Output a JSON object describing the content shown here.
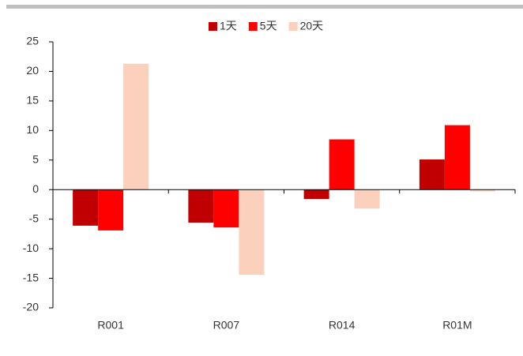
{
  "chart_data": {
    "type": "bar",
    "categories": [
      "R001",
      "R007",
      "R014",
      "R01M"
    ],
    "series": [
      {
        "name": "1天",
        "color": "#c00000",
        "values": [
          -6.1,
          -5.6,
          -1.6,
          5.1
        ]
      },
      {
        "name": "5天",
        "color": "#ff0000",
        "values": [
          -6.9,
          -6.4,
          8.5,
          10.9
        ]
      },
      {
        "name": "20天",
        "color": "#fbd0bd",
        "values": [
          21.3,
          -14.4,
          -3.2,
          -0.3
        ]
      }
    ],
    "ylim": [
      -20,
      25
    ],
    "yticks": [
      -20,
      -15,
      -10,
      -5,
      0,
      5,
      10,
      15,
      20,
      25
    ],
    "legend": "top"
  }
}
